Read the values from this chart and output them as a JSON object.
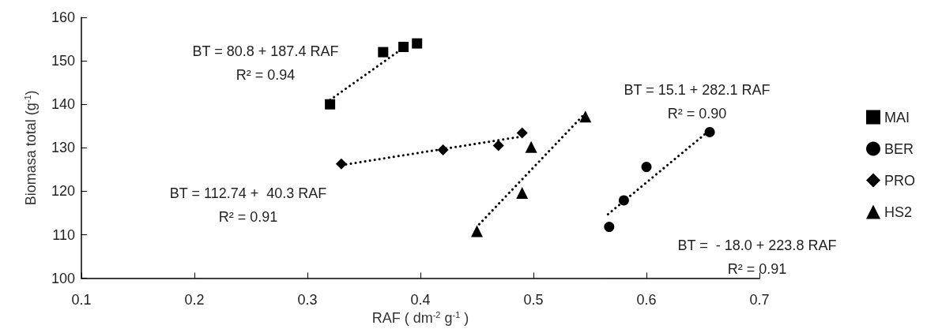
{
  "chart_data": {
    "type": "scatter",
    "xlabel": "RAF ( dm$^{-2}$ g$^{-1}$ )",
    "ylabel": "Biomasa total (g$^{-1}$)",
    "xlim": [
      0.1,
      0.7
    ],
    "xticks": [
      0.1,
      0.2,
      0.3,
      0.4,
      0.5,
      0.6,
      0.7
    ],
    "ylim": [
      100,
      160
    ],
    "yticks": [
      100,
      110,
      120,
      130,
      140,
      150,
      160
    ],
    "grid": false,
    "legend": "right",
    "series": [
      {
        "name": "MAI",
        "color": "#000000",
        "marker": "square",
        "x": [
          0.32,
          0.367,
          0.385,
          0.397
        ],
        "values": [
          140.0,
          152.0,
          153.2,
          154.0
        ]
      },
      {
        "name": "BER",
        "color": "#000000",
        "marker": "circle",
        "x": [
          0.567,
          0.58,
          0.6,
          0.656
        ],
        "values": [
          111.8,
          117.9,
          125.6,
          133.6
        ]
      },
      {
        "name": "PRO",
        "color": "#000000",
        "marker": "diamond",
        "x": [
          0.33,
          0.42,
          0.469,
          0.49
        ],
        "values": [
          126.3,
          129.5,
          130.5,
          133.4
        ]
      },
      {
        "name": "HS2",
        "color": "#000000",
        "marker": "triangle",
        "x": [
          0.45,
          0.49,
          0.498,
          0.546
        ],
        "values": [
          110.8,
          119.6,
          130.2,
          137.2
        ]
      },
      {
        "type": "line",
        "color": "#000000",
        "marker": "none",
        "line_style": "dotted",
        "x": [
          0.32,
          0.385
        ],
        "values": [
          141.0,
          153.0
        ]
      },
      {
        "type": "line",
        "color": "#000000",
        "marker": "none",
        "line_style": "dotted",
        "x": [
          0.33,
          0.49
        ],
        "values": [
          126.0,
          132.6
        ]
      },
      {
        "type": "line",
        "color": "#000000",
        "marker": "none",
        "line_style": "dotted",
        "x": [
          0.452,
          0.546
        ],
        "values": [
          112.4,
          138.0
        ]
      },
      {
        "type": "line",
        "color": "#000000",
        "marker": "none",
        "line_style": "dotted",
        "x": [
          0.566,
          0.653
        ],
        "values": [
          114.7,
          133.4
        ]
      }
    ],
    "annotations": [
      "BT = 80.8 + 187.4 RAF\nR² = 0.94",
      "BT = 112.74 +  40.3 RAF\nR² = 0.91",
      "BT = 15.1 + 282.1 RAF\nR² = 0.90",
      "BT =  - 18.0 + 223.8 RAF\nR² = 0.91"
    ]
  }
}
